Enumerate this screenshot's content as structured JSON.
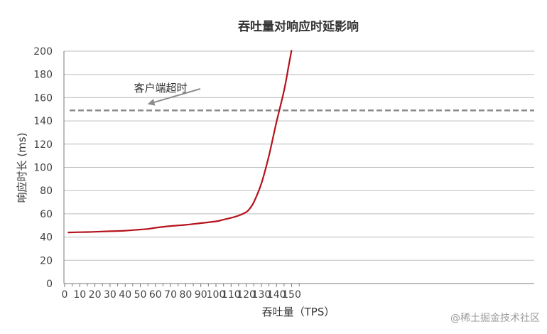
{
  "chart_data": {
    "type": "line",
    "title": "吞吐量对响应时延影响",
    "xlabel": "吞吐量（TPS）",
    "ylabel": "响应时长 (ms)",
    "xlim": [
      0,
      152
    ],
    "ylim": [
      0,
      200
    ],
    "x_ticks": [
      0,
      10,
      20,
      30,
      40,
      50,
      60,
      70,
      80,
      90,
      100,
      110,
      120,
      130,
      140,
      150
    ],
    "y_ticks": [
      0,
      20,
      40,
      60,
      80,
      100,
      120,
      140,
      160,
      180,
      200
    ],
    "grid": "horizontal",
    "legend": "none",
    "series": [
      {
        "color": "#b5121b",
        "x": [
          2,
          10,
          20,
          30,
          40,
          50,
          55,
          60,
          70,
          80,
          90,
          100,
          105,
          110,
          115,
          120,
          122,
          125,
          130,
          135,
          140,
          145,
          148,
          150
        ],
        "y": [
          44,
          44.2,
          44.5,
          45,
          45.5,
          46.5,
          47,
          48,
          49.5,
          50.5,
          52,
          53.5,
          55,
          56.5,
          58.5,
          61.5,
          64,
          70,
          86,
          110,
          139,
          166,
          187,
          201
        ]
      }
    ],
    "reference_lines": [
      {
        "y": 149,
        "style": "dashed",
        "color": "#8c8c8c"
      }
    ],
    "annotations": [
      {
        "text": "客户端超时",
        "arrow_to": [
          58,
          153
        ]
      }
    ]
  },
  "watermark": "@稀土掘金技术社区"
}
